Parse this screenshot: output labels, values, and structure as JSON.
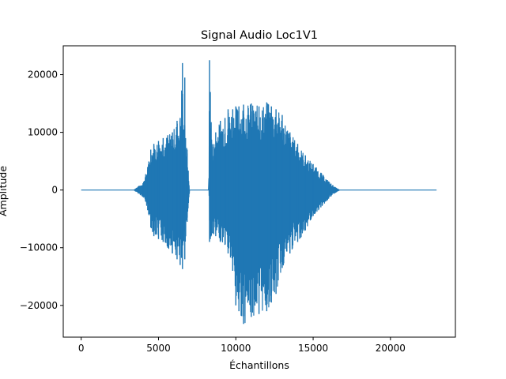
{
  "chart_data": {
    "type": "line",
    "title": "Signal Audio Loc1V1",
    "xlabel": "Échantillons",
    "ylabel": "Amplitude",
    "xlim": [
      -1160,
      24200
    ],
    "ylim": [
      -25500,
      25000
    ],
    "xticks": [
      0,
      5000,
      10000,
      15000,
      20000
    ],
    "yticks": [
      -20000,
      -10000,
      0,
      10000,
      20000
    ],
    "grid": false,
    "series": [
      {
        "color": "#1f77b4",
        "x": [
          0,
          3400,
          3700,
          4000,
          4300,
          4500,
          4700,
          5000,
          5300,
          5600,
          5900,
          6200,
          6400,
          6550,
          6650,
          6700,
          6750,
          6850,
          7000,
          7300,
          8000,
          8250,
          8300,
          8350,
          8500,
          8700,
          9000,
          9300,
          9500,
          9800,
          10000,
          10200,
          10500,
          11000,
          11500,
          12000,
          12300,
          12600,
          13000,
          13500,
          14000,
          14500,
          15000,
          15500,
          16000,
          16400,
          16700,
          17000,
          20000,
          23000
        ],
        "upper": [
          0,
          0,
          600,
          1200,
          4000,
          7000,
          8000,
          8500,
          9000,
          9500,
          10000,
          12000,
          12500,
          22000,
          6500,
          19500,
          9000,
          7000,
          0,
          0,
          0,
          0,
          22500,
          17000,
          7500,
          10000,
          12000,
          12500,
          14000,
          14000,
          14500,
          14500,
          14800,
          15000,
          14500,
          15200,
          14500,
          14000,
          13000,
          10000,
          8000,
          6000,
          4500,
          3000,
          1500,
          500,
          0,
          0,
          0,
          0
        ],
        "lower": [
          0,
          0,
          -600,
          -1200,
          -3500,
          -6500,
          -8000,
          -8500,
          -9000,
          -10000,
          -11000,
          -12000,
          -13000,
          -13700,
          -7000,
          -12000,
          -8000,
          -5500,
          0,
          0,
          0,
          0,
          -9000,
          -8500,
          -7500,
          -8000,
          -9000,
          -9500,
          -11000,
          -14000,
          -20000,
          -21000,
          -23200,
          -22000,
          -21500,
          -21000,
          -19500,
          -18000,
          -13500,
          -11000,
          -9000,
          -7000,
          -4500,
          -3000,
          -1500,
          -500,
          0,
          0,
          0,
          0
        ]
      }
    ]
  }
}
